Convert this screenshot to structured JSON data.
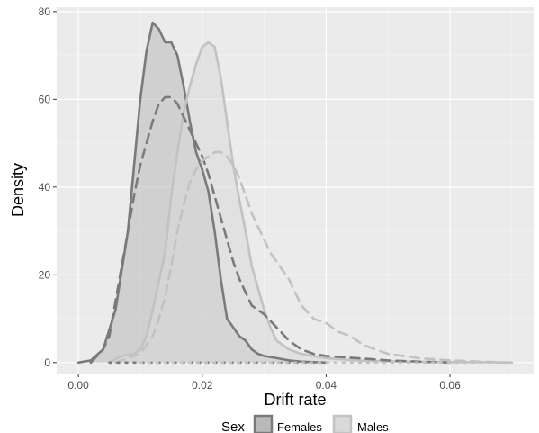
{
  "chart_data": {
    "type": "area",
    "title": "",
    "xlabel": "Drift rate",
    "ylabel": "Density",
    "xlim": [
      -0.0035,
      0.0735
    ],
    "ylim": [
      -2.5,
      81
    ],
    "x_ticks": [
      0.0,
      0.02,
      0.04,
      0.06
    ],
    "x_tick_labels": [
      "0.00",
      "0.02",
      "0.04",
      "0.06"
    ],
    "y_ticks": [
      0,
      20,
      40,
      60,
      80
    ],
    "y_tick_labels": [
      "0",
      "20",
      "40",
      "60",
      "80"
    ],
    "grid": true,
    "legend": {
      "title": "Sex",
      "position": "bottom",
      "entries": [
        "Females",
        "Males"
      ]
    },
    "colors": {
      "panel": "#ebebeb",
      "females": "#7a7a7a",
      "males": "#c2c2c2",
      "females_fill": "#b9b9b9",
      "males_fill": "#d9d9d9"
    },
    "series": [
      {
        "name": "Females",
        "style": "solid-filled",
        "points": [
          [
            0.0,
            0
          ],
          [
            0.002,
            0.5
          ],
          [
            0.004,
            3
          ],
          [
            0.006,
            12
          ],
          [
            0.008,
            30
          ],
          [
            0.01,
            60
          ],
          [
            0.011,
            71
          ],
          [
            0.012,
            77.5
          ],
          [
            0.013,
            76
          ],
          [
            0.014,
            73
          ],
          [
            0.015,
            73
          ],
          [
            0.016,
            70
          ],
          [
            0.017,
            63
          ],
          [
            0.018,
            55
          ],
          [
            0.019,
            48
          ],
          [
            0.02,
            44
          ],
          [
            0.021,
            39
          ],
          [
            0.022,
            30
          ],
          [
            0.023,
            19
          ],
          [
            0.024,
            10
          ],
          [
            0.025,
            8
          ],
          [
            0.026,
            6
          ],
          [
            0.027,
            5
          ],
          [
            0.028,
            3
          ],
          [
            0.029,
            2
          ],
          [
            0.03,
            1.5
          ],
          [
            0.032,
            1
          ],
          [
            0.034,
            0.5
          ],
          [
            0.036,
            0.2
          ],
          [
            0.04,
            0
          ]
        ]
      },
      {
        "name": "Males",
        "style": "solid-filled",
        "points": [
          [
            0.005,
            0
          ],
          [
            0.007,
            1.5
          ],
          [
            0.009,
            2
          ],
          [
            0.01,
            3
          ],
          [
            0.011,
            6
          ],
          [
            0.012,
            12
          ],
          [
            0.014,
            25
          ],
          [
            0.015,
            38
          ],
          [
            0.016,
            48
          ],
          [
            0.017,
            57
          ],
          [
            0.018,
            63
          ],
          [
            0.019,
            68
          ],
          [
            0.02,
            72
          ],
          [
            0.021,
            73
          ],
          [
            0.022,
            72
          ],
          [
            0.023,
            65
          ],
          [
            0.024,
            55
          ],
          [
            0.025,
            45
          ],
          [
            0.026,
            37
          ],
          [
            0.027,
            30
          ],
          [
            0.028,
            22
          ],
          [
            0.029,
            17
          ],
          [
            0.03,
            12
          ],
          [
            0.031,
            8
          ],
          [
            0.032,
            5
          ],
          [
            0.034,
            3
          ],
          [
            0.036,
            2
          ],
          [
            0.04,
            1
          ],
          [
            0.045,
            0.5
          ],
          [
            0.05,
            0.3
          ],
          [
            0.055,
            0.2
          ],
          [
            0.06,
            0.1
          ],
          [
            0.065,
            0.1
          ],
          [
            0.07,
            0
          ]
        ]
      },
      {
        "name": "Females",
        "style": "dashed",
        "points": [
          [
            0.002,
            0
          ],
          [
            0.004,
            3
          ],
          [
            0.005,
            6
          ],
          [
            0.006,
            14
          ],
          [
            0.008,
            30
          ],
          [
            0.009,
            38
          ],
          [
            0.01,
            45
          ],
          [
            0.011,
            50
          ],
          [
            0.012,
            55
          ],
          [
            0.013,
            59
          ],
          [
            0.014,
            60.5
          ],
          [
            0.015,
            60.5
          ],
          [
            0.016,
            59
          ],
          [
            0.017,
            56
          ],
          [
            0.018,
            53
          ],
          [
            0.019,
            50
          ],
          [
            0.02,
            47
          ],
          [
            0.021,
            43
          ],
          [
            0.022,
            38
          ],
          [
            0.023,
            33
          ],
          [
            0.024,
            28
          ],
          [
            0.025,
            23
          ],
          [
            0.026,
            19
          ],
          [
            0.027,
            16
          ],
          [
            0.028,
            13
          ],
          [
            0.029,
            12
          ],
          [
            0.03,
            11
          ],
          [
            0.032,
            8
          ],
          [
            0.034,
            5
          ],
          [
            0.036,
            3
          ],
          [
            0.038,
            2
          ],
          [
            0.04,
            1.5
          ],
          [
            0.045,
            1
          ],
          [
            0.05,
            0.5
          ],
          [
            0.055,
            0.2
          ],
          [
            0.06,
            0
          ]
        ]
      },
      {
        "name": "Males",
        "style": "dashed",
        "points": [
          [
            0.006,
            0
          ],
          [
            0.008,
            1
          ],
          [
            0.01,
            2
          ],
          [
            0.012,
            6
          ],
          [
            0.013,
            10
          ],
          [
            0.014,
            15
          ],
          [
            0.015,
            22
          ],
          [
            0.016,
            30
          ],
          [
            0.017,
            36
          ],
          [
            0.018,
            41
          ],
          [
            0.019,
            44
          ],
          [
            0.02,
            46
          ],
          [
            0.021,
            47
          ],
          [
            0.022,
            48
          ],
          [
            0.023,
            48
          ],
          [
            0.024,
            47
          ],
          [
            0.025,
            45
          ],
          [
            0.026,
            42
          ],
          [
            0.027,
            38
          ],
          [
            0.028,
            34
          ],
          [
            0.029,
            31
          ],
          [
            0.03,
            28
          ],
          [
            0.031,
            25
          ],
          [
            0.032,
            23
          ],
          [
            0.033,
            21
          ],
          [
            0.034,
            19
          ],
          [
            0.035,
            16
          ],
          [
            0.036,
            13
          ],
          [
            0.038,
            10
          ],
          [
            0.04,
            9
          ],
          [
            0.042,
            7
          ],
          [
            0.044,
            6
          ],
          [
            0.046,
            4
          ],
          [
            0.048,
            3
          ],
          [
            0.05,
            2
          ],
          [
            0.055,
            1
          ],
          [
            0.06,
            0.5
          ],
          [
            0.065,
            0.2
          ],
          [
            0.07,
            0
          ]
        ]
      },
      {
        "name": "Females",
        "style": "dotted",
        "points": [
          [
            0.005,
            0
          ],
          [
            0.04,
            0
          ]
        ]
      },
      {
        "name": "Males",
        "style": "dotted",
        "points": [
          [
            0.01,
            0
          ],
          [
            0.07,
            0
          ]
        ]
      }
    ]
  }
}
